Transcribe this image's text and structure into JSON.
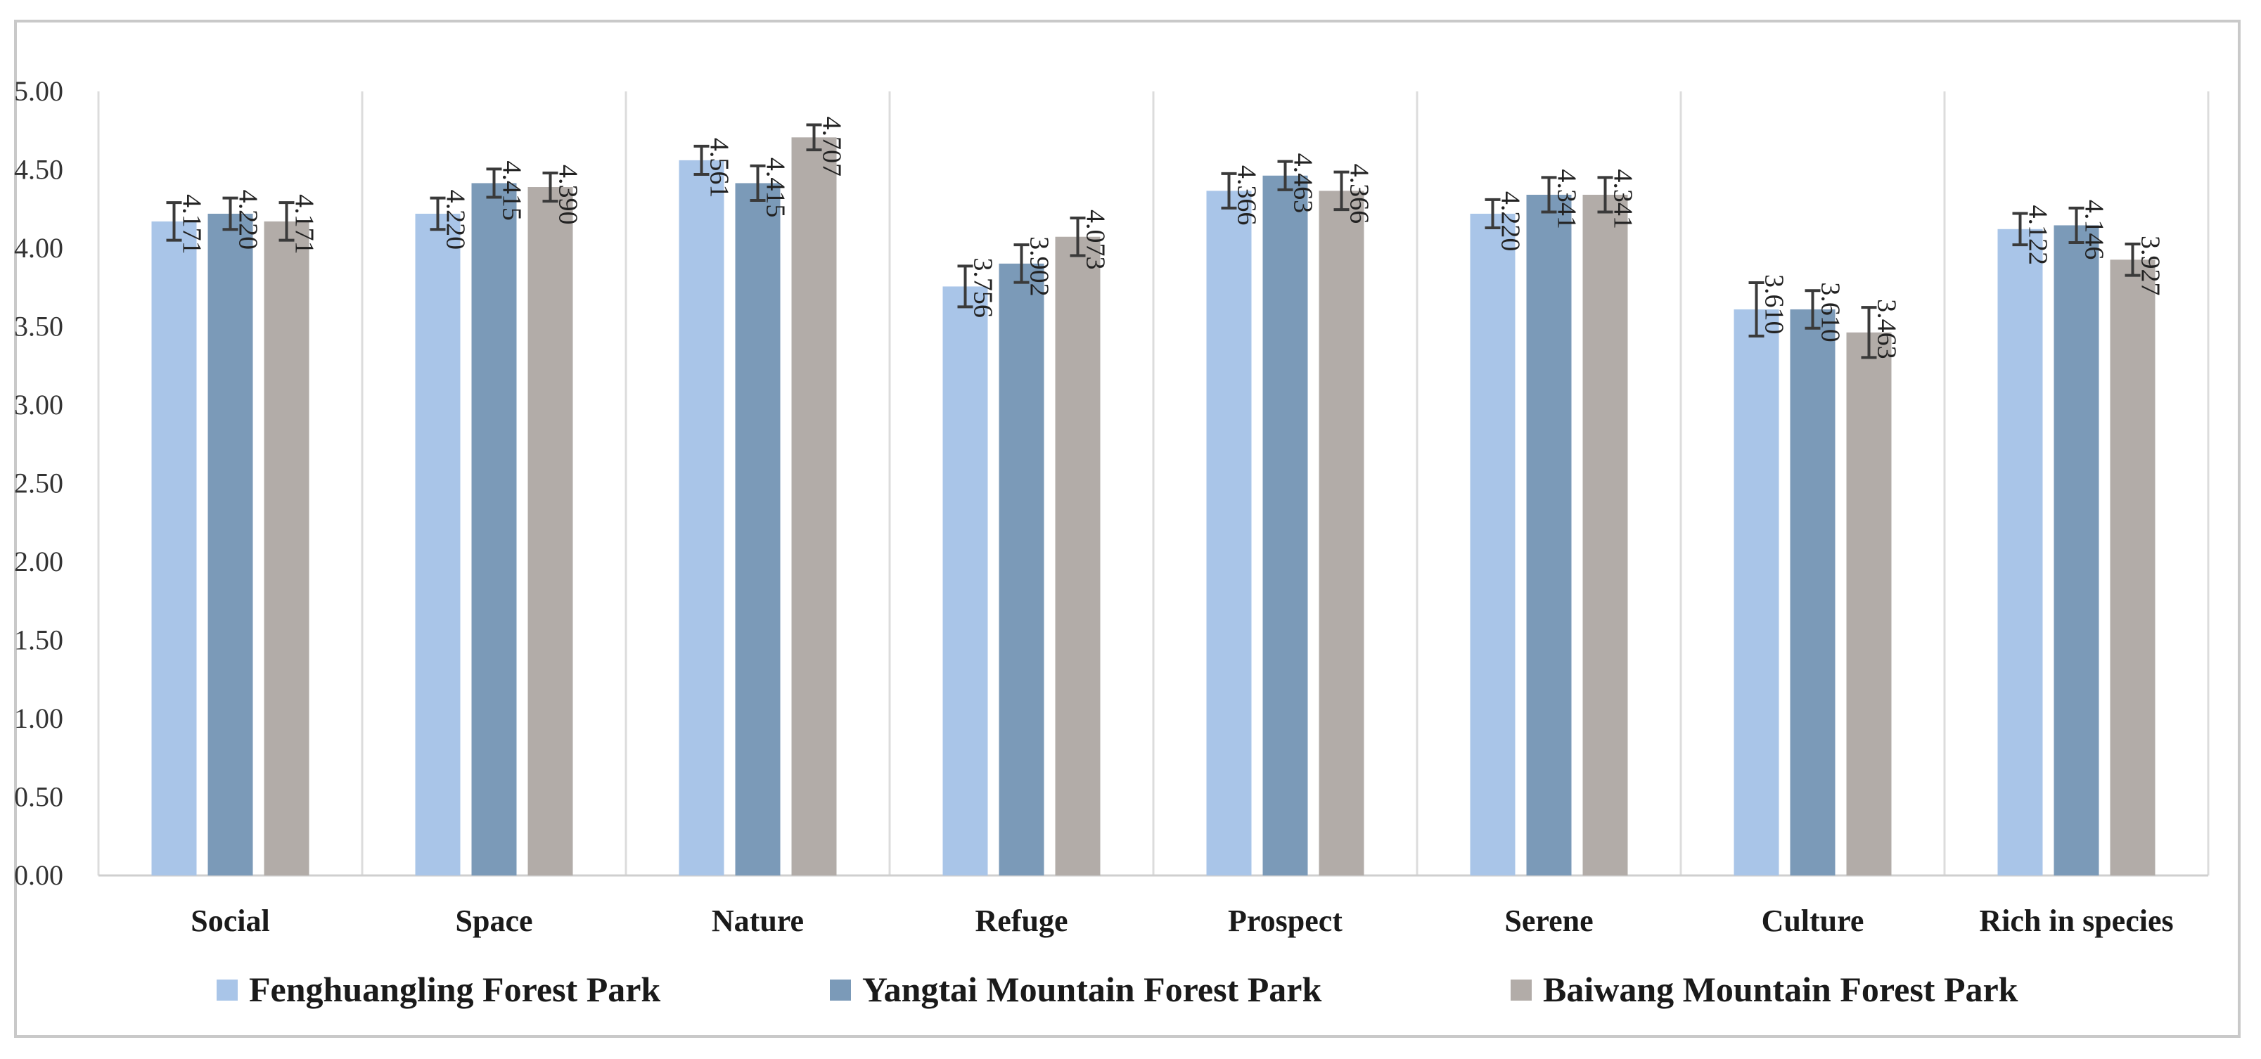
{
  "chart_data": {
    "type": "bar",
    "categories": [
      "Social",
      "Space",
      "Nature",
      "Refuge",
      "Prospect",
      "Serene",
      "Culture",
      "Rich in species"
    ],
    "series": [
      {
        "name": "Fenghuangling Forest Park",
        "color": "#a9c5e8",
        "values": [
          4.171,
          4.22,
          4.561,
          3.756,
          4.366,
          4.22,
          3.61,
          4.122
        ],
        "labels": [
          "4.171",
          "4.220",
          "4.561",
          "3.756",
          "4.366",
          "4.220",
          "3.610",
          "4.122"
        ],
        "errors": [
          0.12,
          0.1,
          0.09,
          0.13,
          0.11,
          0.09,
          0.17,
          0.1
        ]
      },
      {
        "name": "Yangtai Mountain Forest Park",
        "color": "#7b9ab8",
        "values": [
          4.22,
          4.415,
          4.415,
          3.902,
          4.463,
          4.341,
          3.61,
          4.146
        ],
        "labels": [
          "4.220",
          "4.415",
          "4.415",
          "3.902",
          "4.463",
          "4.341",
          "3.610",
          "4.146"
        ],
        "errors": [
          0.1,
          0.09,
          0.11,
          0.12,
          0.09,
          0.11,
          0.12,
          0.11
        ]
      },
      {
        "name": "Baiwang Mountain Forest Park",
        "color": "#b2aca8",
        "values": [
          4.171,
          4.39,
          4.707,
          4.073,
          4.366,
          4.341,
          3.463,
          3.927
        ],
        "labels": [
          "4.171",
          "4.390",
          "4.707",
          "4.073",
          "4.366",
          "4.341",
          "3.463",
          "3.927"
        ],
        "errors": [
          0.12,
          0.09,
          0.08,
          0.12,
          0.12,
          0.11,
          0.16,
          0.1
        ]
      }
    ],
    "yticks": [
      "0.00",
      "0.50",
      "1.00",
      "1.50",
      "2.00",
      "2.50",
      "3.00",
      "3.50",
      "4.00",
      "4.50",
      "5.00"
    ],
    "ylim": [
      0,
      5
    ],
    "title": "",
    "xlabel": "",
    "ylabel": "",
    "grid": "vertical separators only",
    "legend_position": "bottom"
  }
}
